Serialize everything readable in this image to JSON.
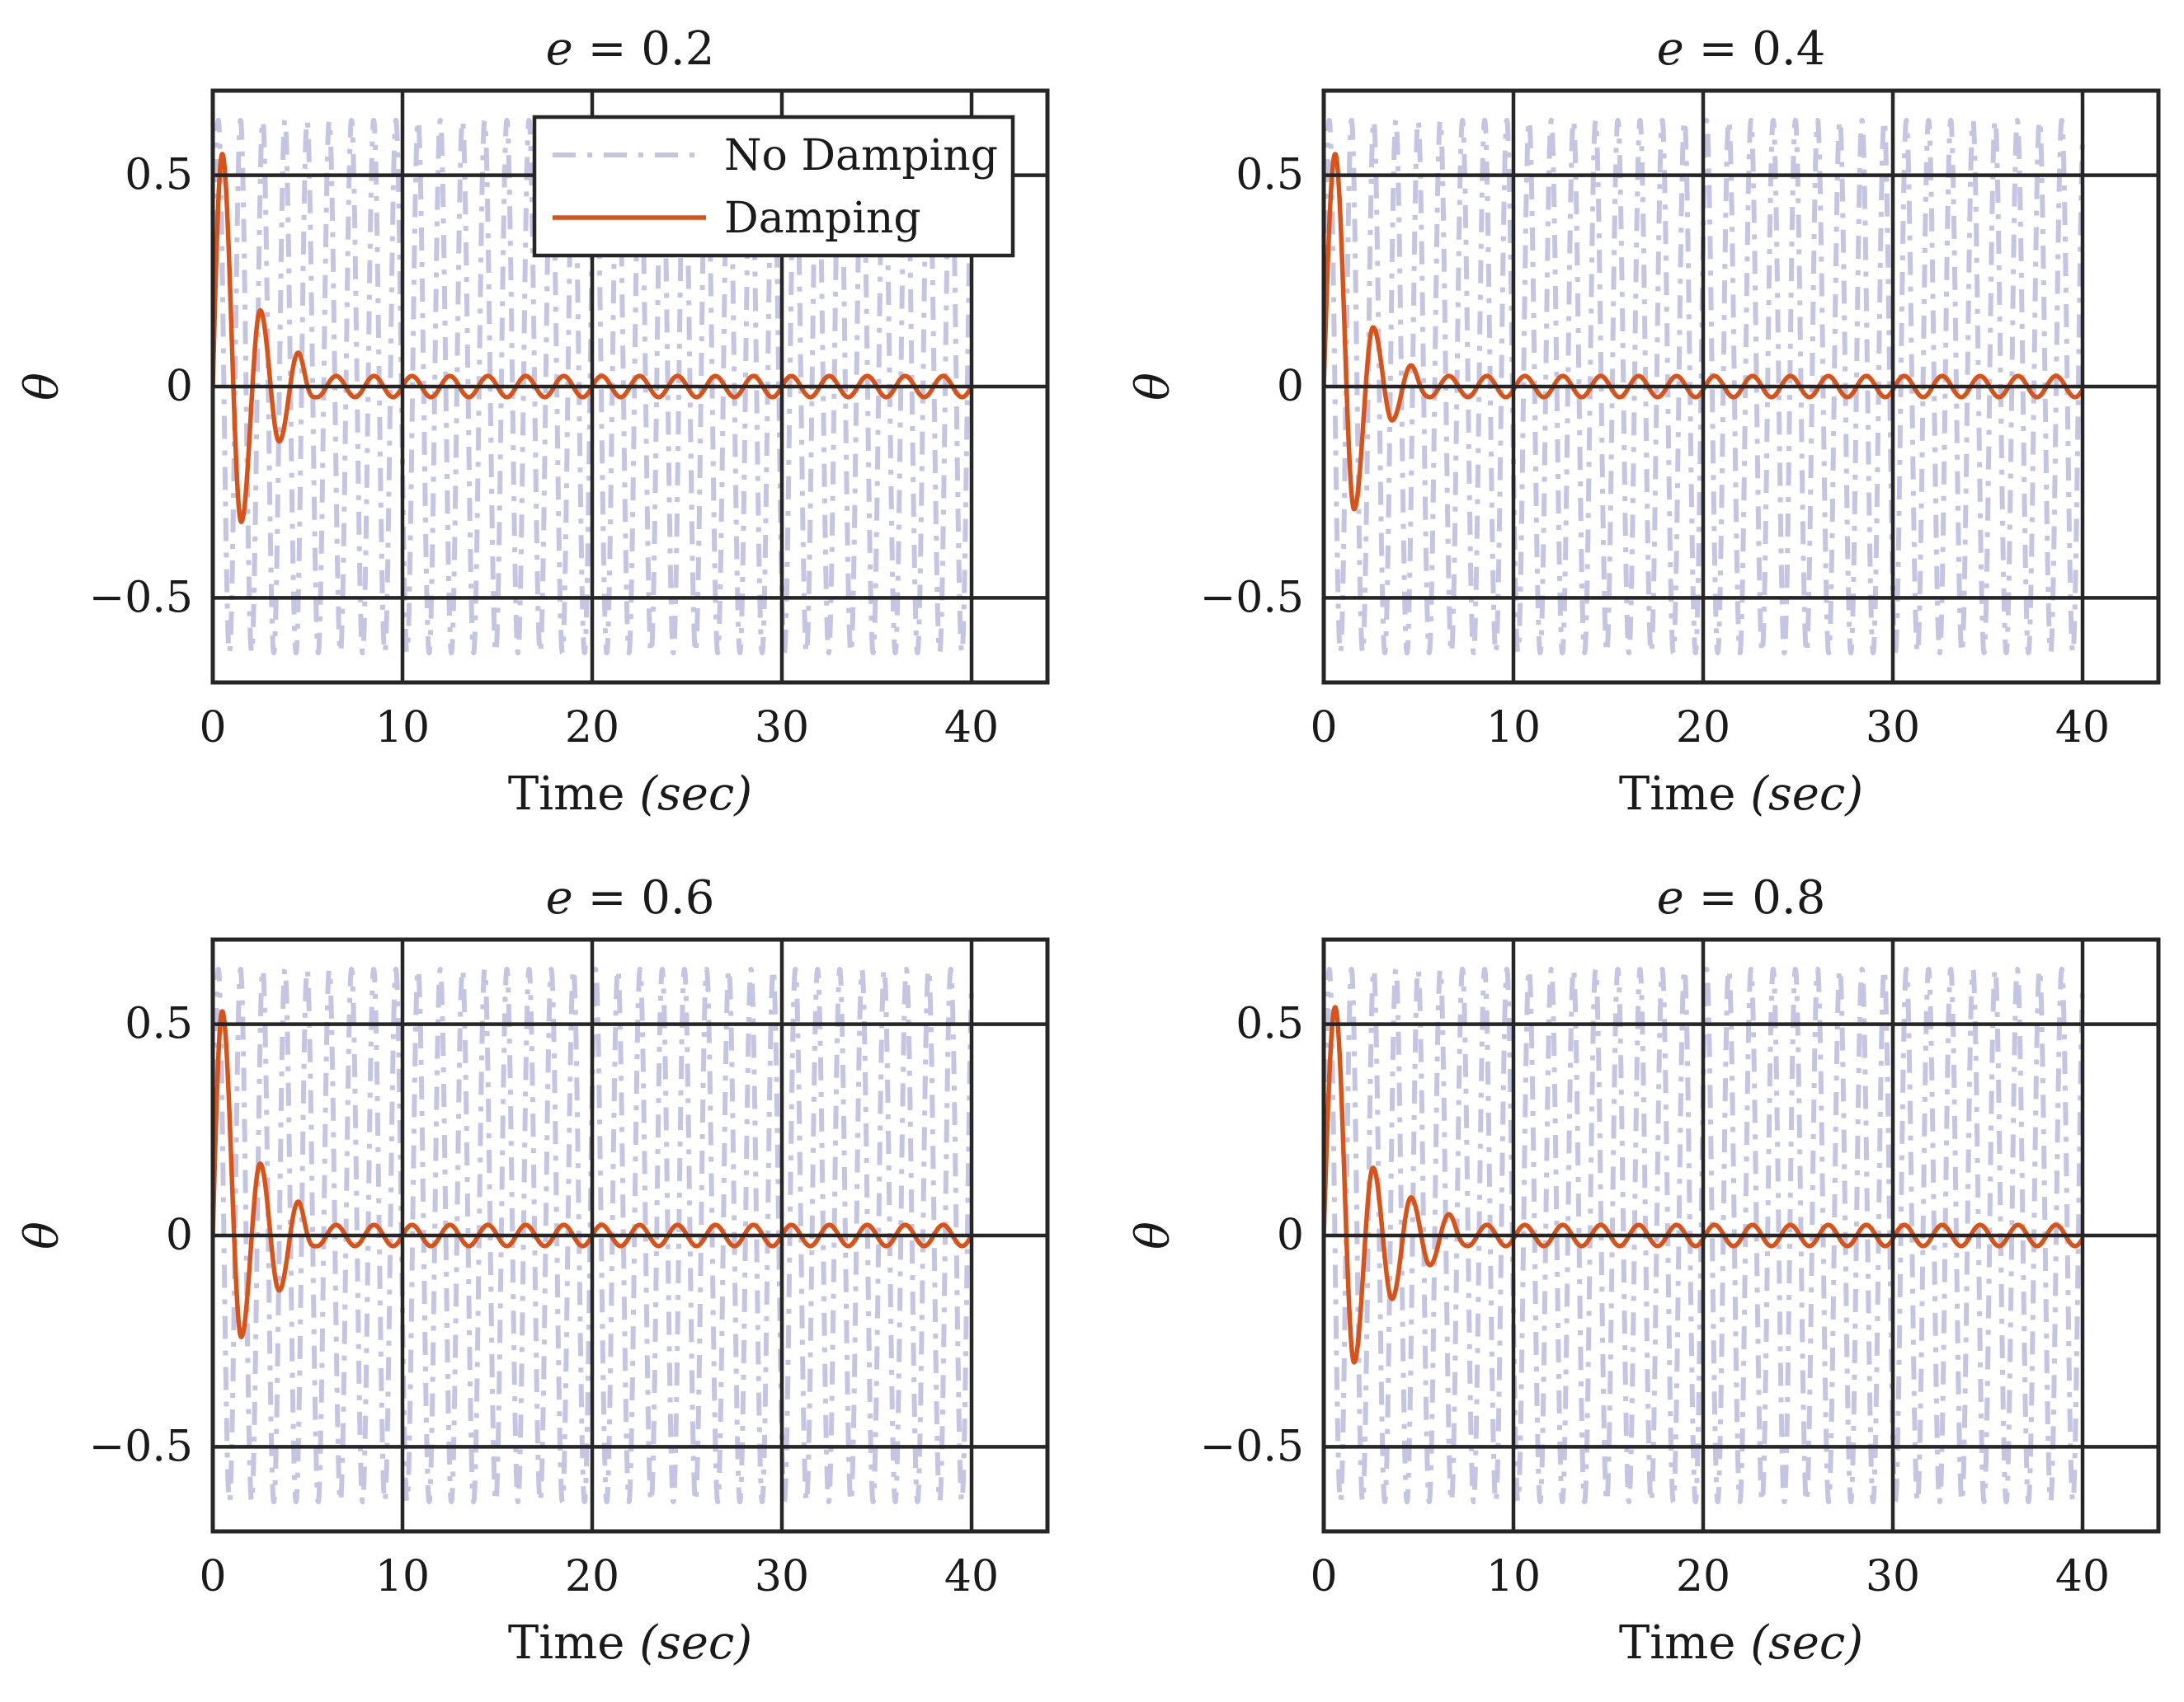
{
  "chart_data": [
    {
      "type": "line",
      "title_var": "e",
      "title_eq": " = ",
      "title_val": "0.2",
      "e": 0.2,
      "xlabel_main": "Time ",
      "xlabel_unit": "(sec)",
      "ylabel": "θ",
      "xlim": [
        0,
        44
      ],
      "ylim": [
        -0.7,
        0.7
      ],
      "xticks": [
        0,
        10,
        20,
        30,
        40
      ],
      "xtick_labels": [
        "0",
        "10",
        "20",
        "30",
        "40"
      ],
      "yticks": [
        -0.5,
        0,
        0.5
      ],
      "ytick_labels": [
        "−0.5",
        "0",
        "0.5"
      ],
      "grid": true,
      "legend": true,
      "legend_position": "top-right",
      "series": [
        {
          "name": "No Damping",
          "style": "dash-dot",
          "color": "#c4c5e2",
          "amplitude": 0.63,
          "period": 1.17,
          "t_end": 40
        },
        {
          "name": "Damping",
          "style": "solid",
          "color": "#d95319",
          "peaks": [
            [
              0.5,
              0.55
            ],
            [
              1.5,
              -0.32
            ],
            [
              2.5,
              0.18
            ],
            [
              3.5,
              -0.13
            ],
            [
              4.5,
              0.08
            ]
          ],
          "steady_amplitude": 0.025,
          "steady_period": 2.0,
          "t_end": 40
        }
      ]
    },
    {
      "type": "line",
      "title_var": "e",
      "title_eq": " = ",
      "title_val": "0.4",
      "e": 0.4,
      "xlabel_main": "Time ",
      "xlabel_unit": "(sec)",
      "ylabel": "θ",
      "xlim": [
        0,
        44
      ],
      "ylim": [
        -0.7,
        0.7
      ],
      "xticks": [
        0,
        10,
        20,
        30,
        40
      ],
      "xtick_labels": [
        "0",
        "10",
        "20",
        "30",
        "40"
      ],
      "yticks": [
        -0.5,
        0,
        0.5
      ],
      "ytick_labels": [
        "−0.5",
        "0",
        "0.5"
      ],
      "grid": true,
      "legend": false,
      "series": [
        {
          "name": "No Damping",
          "style": "dash-dot",
          "color": "#c4c5e2",
          "amplitude": 0.63,
          "period": 1.17,
          "t_end": 40
        },
        {
          "name": "Damping",
          "style": "solid",
          "color": "#d95319",
          "peaks": [
            [
              0.6,
              0.55
            ],
            [
              1.6,
              -0.29
            ],
            [
              2.6,
              0.14
            ],
            [
              3.6,
              -0.08
            ],
            [
              4.6,
              0.05
            ]
          ],
          "steady_amplitude": 0.025,
          "steady_period": 2.0,
          "t_end": 40
        }
      ]
    },
    {
      "type": "line",
      "title_var": "e",
      "title_eq": " = ",
      "title_val": "0.6",
      "e": 0.6,
      "xlabel_main": "Time ",
      "xlabel_unit": "(sec)",
      "ylabel": "θ",
      "xlim": [
        0,
        44
      ],
      "ylim": [
        -0.7,
        0.7
      ],
      "xticks": [
        0,
        10,
        20,
        30,
        40
      ],
      "xtick_labels": [
        "0",
        "10",
        "20",
        "30",
        "40"
      ],
      "yticks": [
        -0.5,
        0,
        0.5
      ],
      "ytick_labels": [
        "−0.5",
        "0",
        "0.5"
      ],
      "grid": true,
      "legend": false,
      "series": [
        {
          "name": "No Damping",
          "style": "dash-dot",
          "color": "#c4c5e2",
          "amplitude": 0.63,
          "period": 1.17,
          "t_end": 40
        },
        {
          "name": "Damping",
          "style": "solid",
          "color": "#d95319",
          "peaks": [
            [
              0.5,
              0.53
            ],
            [
              1.5,
              -0.24
            ],
            [
              2.5,
              0.17
            ],
            [
              3.5,
              -0.13
            ],
            [
              4.5,
              0.08
            ]
          ],
          "steady_amplitude": 0.025,
          "steady_period": 2.0,
          "t_end": 40
        }
      ]
    },
    {
      "type": "line",
      "title_var": "e",
      "title_eq": " = ",
      "title_val": "0.8",
      "e": 0.8,
      "xlabel_main": "Time ",
      "xlabel_unit": "(sec)",
      "ylabel": "θ",
      "xlim": [
        0,
        44
      ],
      "ylim": [
        -0.7,
        0.7
      ],
      "xticks": [
        0,
        10,
        20,
        30,
        40
      ],
      "xtick_labels": [
        "0",
        "10",
        "20",
        "30",
        "40"
      ],
      "yticks": [
        -0.5,
        0,
        0.5
      ],
      "ytick_labels": [
        "−0.5",
        "0",
        "0.5"
      ],
      "grid": true,
      "legend": false,
      "series": [
        {
          "name": "No Damping",
          "style": "dash-dot",
          "color": "#c4c5e2",
          "amplitude": 0.63,
          "period": 1.17,
          "t_end": 40
        },
        {
          "name": "Damping",
          "style": "solid",
          "color": "#d95319",
          "peaks": [
            [
              0.6,
              0.54
            ],
            [
              1.6,
              -0.3
            ],
            [
              2.6,
              0.16
            ],
            [
              3.6,
              -0.15
            ],
            [
              4.6,
              0.09
            ],
            [
              5.6,
              -0.07
            ],
            [
              6.6,
              0.05
            ]
          ],
          "steady_amplitude": 0.025,
          "steady_period": 2.0,
          "t_end": 40
        }
      ]
    }
  ],
  "legend": {
    "no_damping_label": "No Damping",
    "damping_label": "Damping"
  }
}
